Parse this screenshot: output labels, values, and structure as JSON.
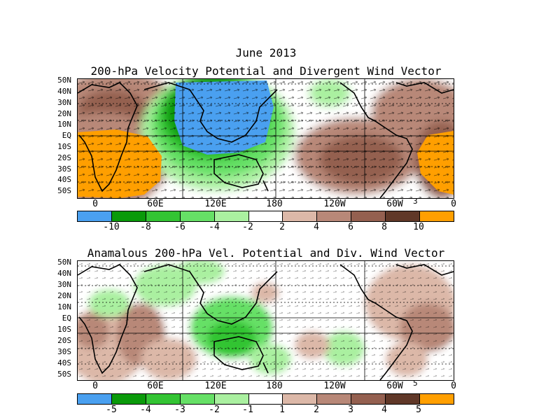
{
  "month_title": "June 2013",
  "panel1": {
    "title": "200-hPa Velocity Potential and Divergent Wind Vector",
    "vector_ref": "3",
    "colorbar_labels": [
      "-10",
      "-8",
      "-6",
      "-4",
      "-2",
      "2",
      "4",
      "6",
      "8",
      "10"
    ],
    "colors": [
      "#4aa0f0",
      "#0a9a0a",
      "#33c433",
      "#66e066",
      "#aaf0a0",
      "#ffffff",
      "#dcb8a8",
      "#b88878",
      "#946050",
      "#603828",
      "#ff9f00"
    ]
  },
  "panel2": {
    "title": "Anamalous 200-hPa Vel. Potential and Div. Wind Vector",
    "vector_ref": "5",
    "colorbar_labels": [
      "-5",
      "-4",
      "-3",
      "-2",
      "-1",
      "1",
      "2",
      "3",
      "4",
      "5"
    ],
    "colors": [
      "#4aa0f0",
      "#0a9a0a",
      "#33c433",
      "#66e066",
      "#aaf0a0",
      "#ffffff",
      "#dcb8a8",
      "#b88878",
      "#946050",
      "#603828",
      "#ff9f00"
    ]
  },
  "lat_labels": [
    "50N",
    "40N",
    "30N",
    "20N",
    "10N",
    "EQ",
    "10S",
    "20S",
    "30S",
    "40S",
    "50S"
  ],
  "lon_labels": [
    "0",
    "60E",
    "120E",
    "180",
    "120W",
    "60W",
    "0"
  ]
}
